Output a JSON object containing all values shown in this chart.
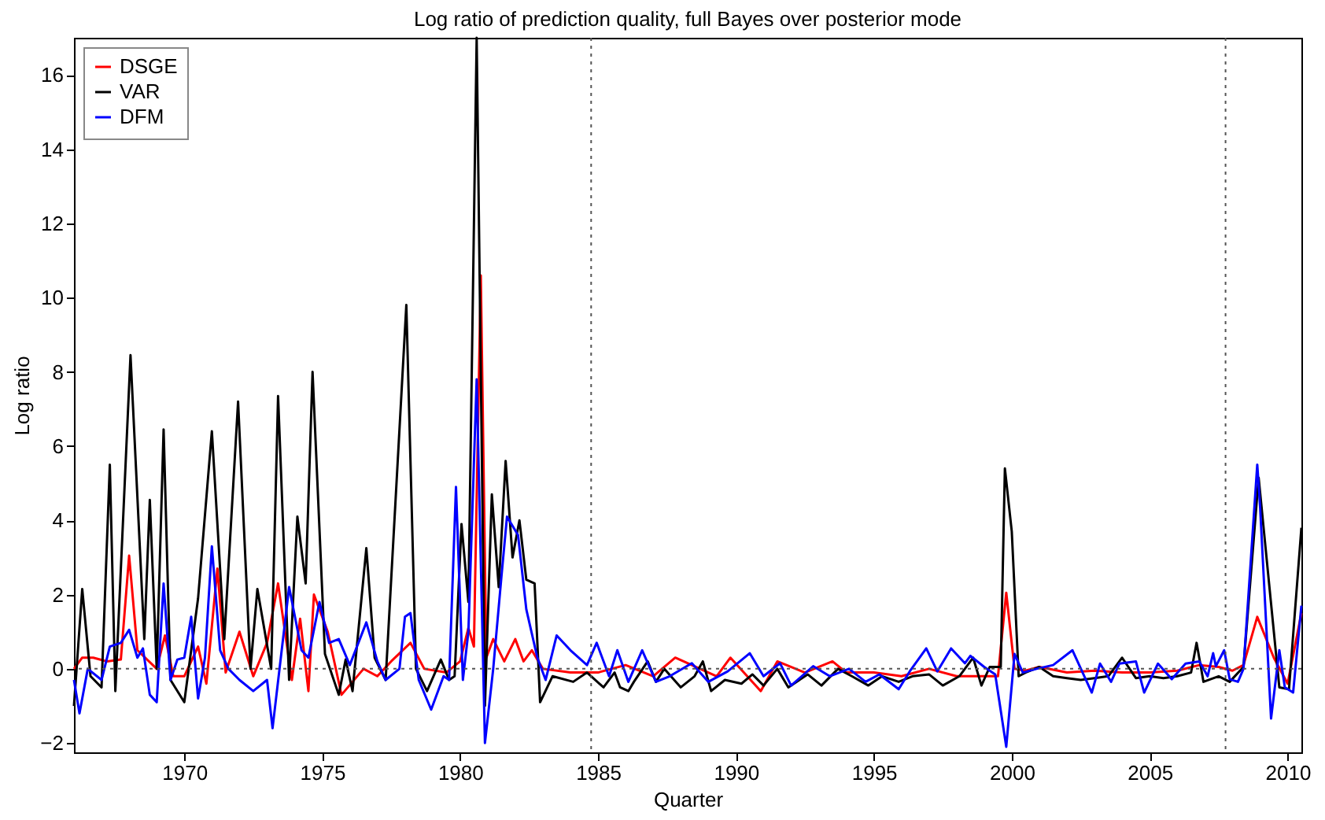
{
  "chart_data": {
    "type": "line",
    "title": "Log ratio of prediction quality, full Bayes over posterior mode",
    "xlabel": "Quarter",
    "ylabel": "Log ratio",
    "xlim": [
      1966,
      2010.5
    ],
    "ylim": [
      -2.25,
      17
    ],
    "xticks": [
      1970,
      1975,
      1980,
      1985,
      1990,
      1995,
      2000,
      2005,
      2010
    ],
    "yticks": [
      -2,
      0,
      2,
      4,
      6,
      8,
      10,
      12,
      14,
      16
    ],
    "grid": false,
    "legend": "top left",
    "line_style": "solid",
    "ref_lines": [
      {
        "axis": "y",
        "value": 0,
        "label": null,
        "color": "#555555",
        "line_style": "dotted"
      },
      {
        "axis": "x",
        "value": 1984.75,
        "label": null,
        "color": "#555555",
        "line_style": "dotted"
      },
      {
        "axis": "x",
        "value": 2007.75,
        "label": null,
        "color": "#555555",
        "line_style": "dotted"
      }
    ],
    "series": [
      {
        "name": "DSGE",
        "color": "#ff0000",
        "x": [
          1966,
          1966.3,
          1966.7,
          1967.2,
          1967.7,
          1968.0,
          1968.3,
          1969.0,
          1969.3,
          1969.6,
          1970.0,
          1970.5,
          1970.8,
          1971.2,
          1971.5,
          1972.0,
          1972.5,
          1973.0,
          1973.4,
          1973.9,
          1974.2,
          1974.5,
          1974.7,
          1975.2,
          1975.7,
          1976.5,
          1977.0,
          1977.5,
          1978.2,
          1978.7,
          1979.5,
          1980.0,
          1980.3,
          1980.5,
          1980.75,
          1980.95,
          1981.2,
          1981.6,
          1982.0,
          1982.3,
          1982.6,
          1983.0,
          1984.0,
          1985.0,
          1986.0,
          1987.0,
          1987.8,
          1988.4,
          1989.3,
          1989.8,
          1990.9,
          1991.5,
          1992.5,
          1993.5,
          1994.0,
          1995.0,
          1996.0,
          1997.0,
          1998.0,
          1999.0,
          1999.5,
          1999.8,
          2000.1,
          2000.5,
          2001.0,
          2002.0,
          2003.0,
          2004.0,
          2005.0,
          2006.0,
          2006.8,
          2007.5,
          2008.0,
          2008.4,
          2008.9,
          2009.5,
          2010.0,
          2010.5
        ],
        "values": [
          0.0,
          0.3,
          0.3,
          0.2,
          0.25,
          3.05,
          0.5,
          0.0,
          0.9,
          -0.2,
          -0.2,
          0.6,
          -0.4,
          2.7,
          -0.1,
          1.0,
          -0.2,
          0.7,
          2.3,
          -0.3,
          1.35,
          -0.6,
          2.0,
          1.0,
          -0.7,
          0.0,
          -0.2,
          0.2,
          0.7,
          0.0,
          -0.1,
          0.2,
          1.1,
          0.6,
          10.6,
          0.3,
          0.8,
          0.2,
          0.8,
          0.2,
          0.5,
          0.0,
          -0.1,
          -0.1,
          0.1,
          -0.2,
          0.3,
          0.1,
          -0.2,
          0.3,
          -0.6,
          0.2,
          -0.1,
          0.2,
          -0.1,
          -0.1,
          -0.2,
          0.0,
          -0.2,
          -0.2,
          -0.2,
          2.05,
          0.0,
          -0.05,
          0.05,
          -0.1,
          -0.05,
          -0.1,
          -0.1,
          -0.05,
          0.1,
          0.05,
          -0.05,
          0.1,
          1.4,
          0.3,
          -0.4,
          1.5
        ]
      },
      {
        "name": "VAR",
        "color": "#000000",
        "x": [
          1966.0,
          1966.3,
          1966.6,
          1967.0,
          1967.3,
          1967.5,
          1968.05,
          1968.55,
          1968.75,
          1969.0,
          1969.25,
          1969.5,
          1970.0,
          1970.5,
          1971.0,
          1971.45,
          1971.95,
          1972.4,
          1972.65,
          1973.15,
          1973.4,
          1973.8,
          1974.1,
          1974.4,
          1974.65,
          1975.1,
          1975.6,
          1975.85,
          1976.1,
          1976.6,
          1976.9,
          1977.3,
          1978.05,
          1978.4,
          1978.8,
          1979.3,
          1979.6,
          1979.8,
          1980.05,
          1980.3,
          1980.6,
          1980.9,
          1981.15,
          1981.4,
          1981.65,
          1981.9,
          1982.15,
          1982.4,
          1982.7,
          1982.9,
          1983.35,
          1984.1,
          1984.6,
          1985.2,
          1985.6,
          1985.8,
          1986.1,
          1986.3,
          1986.8,
          1987.1,
          1987.4,
          1988.0,
          1988.5,
          1988.8,
          1989.1,
          1989.6,
          1990.2,
          1990.6,
          1991.0,
          1991.5,
          1991.9,
          1992.6,
          1993.1,
          1993.7,
          1994.2,
          1994.8,
          1995.3,
          1995.9,
          1996.4,
          1997.0,
          1997.5,
          1998.1,
          1998.6,
          1998.9,
          1999.2,
          1999.6,
          1999.75,
          2000.0,
          2000.25,
          2000.5,
          2001.0,
          2001.5,
          2002.0,
          2002.5,
          2003.0,
          2003.5,
          2004.0,
          2004.5,
          2005.0,
          2005.5,
          2006.0,
          2006.5,
          2006.7,
          2006.95,
          2007.5,
          2007.9,
          2008.4,
          2008.95,
          2009.7,
          2010.05,
          2010.5
        ],
        "values": [
          -1.0,
          2.15,
          -0.2,
          -0.5,
          5.5,
          -0.6,
          8.45,
          0.8,
          4.55,
          0.0,
          6.45,
          -0.3,
          -0.9,
          1.9,
          6.4,
          0.8,
          7.2,
          0.0,
          2.15,
          0.0,
          7.35,
          -0.3,
          4.1,
          2.3,
          8.0,
          0.4,
          -0.7,
          0.25,
          -0.6,
          3.25,
          0.3,
          -0.3,
          9.8,
          0.0,
          -0.6,
          0.25,
          -0.3,
          -0.2,
          3.9,
          1.8,
          17,
          -1.0,
          4.7,
          2.2,
          5.6,
          3.0,
          4.0,
          2.4,
          2.3,
          -0.9,
          -0.2,
          -0.35,
          -0.1,
          -0.5,
          -0.1,
          -0.5,
          -0.6,
          -0.35,
          0.2,
          -0.35,
          0.0,
          -0.5,
          -0.2,
          0.2,
          -0.6,
          -0.3,
          -0.4,
          -0.15,
          -0.45,
          0.0,
          -0.5,
          -0.15,
          -0.45,
          0.0,
          -0.2,
          -0.45,
          -0.2,
          -0.35,
          -0.2,
          -0.15,
          -0.45,
          -0.2,
          0.3,
          -0.45,
          0.05,
          0.05,
          5.4,
          3.7,
          -0.2,
          -0.1,
          0.05,
          -0.2,
          -0.25,
          -0.3,
          -0.25,
          -0.2,
          0.3,
          -0.25,
          -0.2,
          -0.25,
          -0.2,
          -0.1,
          0.7,
          -0.35,
          -0.2,
          -0.35,
          0.05,
          5.15,
          -0.5,
          -0.55,
          3.8
        ]
      },
      {
        "name": "DFM",
        "color": "#0000ff",
        "x": [
          1966.0,
          1966.2,
          1966.5,
          1967.0,
          1967.3,
          1967.7,
          1968.0,
          1968.3,
          1968.5,
          1968.75,
          1969.0,
          1969.25,
          1969.5,
          1969.75,
          1970.0,
          1970.25,
          1970.5,
          1970.75,
          1971.0,
          1971.3,
          1971.6,
          1972.0,
          1972.5,
          1973.0,
          1973.2,
          1973.5,
          1973.8,
          1974.25,
          1974.5,
          1974.9,
          1975.25,
          1975.6,
          1976.0,
          1976.6,
          1977.0,
          1977.3,
          1977.8,
          1978.0,
          1978.2,
          1978.5,
          1978.95,
          1979.4,
          1979.6,
          1979.85,
          1980.1,
          1980.3,
          1980.6,
          1980.9,
          1981.2,
          1981.5,
          1981.7,
          1982.1,
          1982.4,
          1982.8,
          1983.1,
          1983.5,
          1984.0,
          1984.6,
          1984.95,
          1985.4,
          1985.7,
          1986.1,
          1986.6,
          1987.1,
          1987.6,
          1988.4,
          1989.0,
          1989.7,
          1990.5,
          1991.0,
          1991.6,
          1992.0,
          1992.8,
          1993.4,
          1994.1,
          1994.7,
          1995.2,
          1995.9,
          1996.3,
          1996.9,
          1997.3,
          1997.8,
          1998.3,
          1998.5,
          1999.0,
          1999.4,
          1999.8,
          2000.1,
          2000.4,
          2000.9,
          2001.5,
          2002.2,
          2002.9,
          2003.2,
          2003.6,
          2003.9,
          2004.5,
          2004.8,
          2005.3,
          2005.8,
          2006.3,
          2006.8,
          2007.1,
          2007.3,
          2007.4,
          2007.7,
          2007.9,
          2008.2,
          2008.4,
          2008.9,
          2009.0,
          2009.4,
          2009.7,
          2009.9,
          2010.2,
          2010.5
        ],
        "values": [
          -0.3,
          -1.2,
          0.0,
          -0.3,
          0.6,
          0.7,
          1.05,
          0.3,
          0.55,
          -0.7,
          -0.9,
          2.3,
          -0.3,
          0.25,
          0.3,
          1.4,
          -0.8,
          0.3,
          3.3,
          0.5,
          0.0,
          -0.3,
          -0.6,
          -0.3,
          -1.6,
          0.3,
          2.2,
          0.5,
          0.3,
          1.8,
          0.7,
          0.8,
          0.1,
          1.25,
          0.2,
          -0.3,
          0.0,
          1.4,
          1.5,
          -0.3,
          -1.1,
          -0.2,
          -0.3,
          4.9,
          -0.3,
          1.0,
          7.8,
          -2.0,
          0.0,
          2.5,
          4.1,
          3.6,
          1.6,
          0.3,
          -0.3,
          0.9,
          0.5,
          0.1,
          0.7,
          -0.2,
          0.5,
          -0.35,
          0.5,
          -0.35,
          -0.2,
          0.15,
          -0.35,
          -0.07,
          0.42,
          -0.2,
          0.15,
          -0.45,
          0.07,
          -0.2,
          0.0,
          -0.35,
          -0.15,
          -0.55,
          -0.07,
          0.55,
          -0.07,
          0.55,
          0.15,
          0.35,
          0.05,
          -0.15,
          -2.1,
          0.4,
          -0.1,
          0.0,
          0.1,
          0.5,
          -0.64,
          0.14,
          -0.35,
          0.14,
          0.2,
          -0.64,
          0.14,
          -0.28,
          0.14,
          0.2,
          -0.2,
          0.42,
          0.07,
          0.5,
          -0.28,
          -0.35,
          0.0,
          5.5,
          4.4,
          -1.34,
          0.5,
          -0.5,
          -0.64,
          1.7
        ]
      }
    ]
  }
}
